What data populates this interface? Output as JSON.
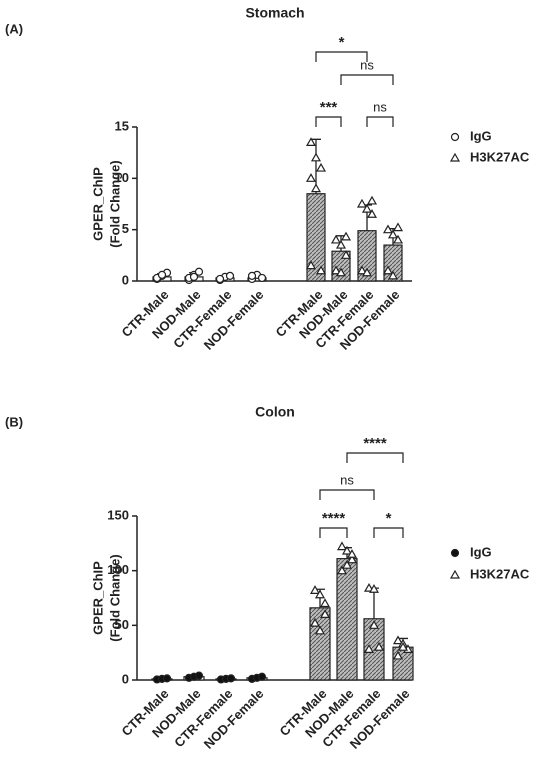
{
  "chart_data": [
    {
      "type": "bar",
      "panel_label": "(A)",
      "title": "Stomach",
      "y_label": [
        "GPER_ChIP",
        "(Fold Change)"
      ],
      "ylim": [
        0,
        15
      ],
      "yticks": [
        0,
        5,
        10,
        15
      ],
      "series": [
        {
          "name": "IgG",
          "marker": "circle-open",
          "color": "#ffffff",
          "categories": [
            "CTR-Male",
            "NOD-Male",
            "CTR-Female",
            "NOD-Female"
          ],
          "values": [
            0.4,
            0.4,
            0.3,
            0.3
          ],
          "errors": [
            0.3,
            0.4,
            0.2,
            0.3
          ],
          "points": [
            [
              0.2,
              0.5,
              0.8,
              0.3,
              0.6
            ],
            [
              0.1,
              0.6,
              0.9,
              0.3,
              0.4
            ],
            [
              0.1,
              0.4,
              0.5,
              0.2
            ],
            [
              0.2,
              0.6,
              0.3,
              0.5
            ]
          ]
        },
        {
          "name": "H3K27AC",
          "marker": "triangle",
          "color": "#8c8c8c",
          "categories": [
            "CTR-Male",
            "NOD-Male",
            "CTR-Female",
            "NOD-Female"
          ],
          "values": [
            8.5,
            2.9,
            4.9,
            3.5
          ],
          "errors": [
            5.3,
            1.5,
            2.5,
            1.6
          ],
          "points": [
            [
              13.5,
              12,
              11,
              10,
              9,
              1,
              1.5
            ],
            [
              4,
              3.5,
              4.3,
              1,
              0.8,
              2.5
            ],
            [
              7.5,
              7,
              6.5,
              1,
              0.8,
              7.8
            ],
            [
              5,
              4.5,
              5.2,
              1,
              0.5,
              4
            ]
          ]
        }
      ],
      "comparisons": [
        {
          "from": 0,
          "to": 1,
          "label": "***"
        },
        {
          "from": 2,
          "to": 3,
          "label": "ns"
        },
        {
          "from": 1,
          "to": 3,
          "label": "ns"
        },
        {
          "from": 0,
          "to": 2,
          "label": "*"
        }
      ]
    },
    {
      "type": "bar",
      "panel_label": "(B)",
      "title": "Colon",
      "y_label": [
        "GPER_ChIP",
        "(Fold Change)"
      ],
      "ylim": [
        0,
        150
      ],
      "yticks": [
        0,
        50,
        100,
        150
      ],
      "series": [
        {
          "name": "IgG",
          "marker": "circle-filled",
          "color": "#ffffff",
          "categories": [
            "CTR-Male",
            "NOD-Male",
            "CTR-Female",
            "NOD-Female"
          ],
          "values": [
            1,
            3,
            1,
            2
          ],
          "errors": [
            0.5,
            1,
            0.5,
            1
          ],
          "points": [
            [
              0.5,
              1,
              1.5
            ],
            [
              2,
              3,
              4
            ],
            [
              0.5,
              1,
              1.5
            ],
            [
              1,
              2,
              3
            ]
          ]
        },
        {
          "name": "H3K27AC",
          "marker": "triangle",
          "color": "#9a9a9a",
          "categories": [
            "CTR-Male",
            "NOD-Male",
            "CTR-Female",
            "NOD-Female"
          ],
          "values": [
            66,
            111,
            56,
            30
          ],
          "errors": [
            17,
            10,
            28,
            8
          ],
          "points": [
            [
              82,
              78,
              60,
              52,
              45,
              70
            ],
            [
              122,
              118,
              110,
              100,
              105,
              115
            ],
            [
              84,
              83,
              30,
              28,
              50
            ],
            [
              36,
              33,
              28,
              22,
              30
            ]
          ]
        }
      ],
      "comparisons": [
        {
          "from": 0,
          "to": 1,
          "label": "****"
        },
        {
          "from": 2,
          "to": 3,
          "label": "*"
        },
        {
          "from": 0,
          "to": 2,
          "label": "ns"
        },
        {
          "from": 1,
          "to": 3,
          "label": "****"
        }
      ]
    }
  ]
}
